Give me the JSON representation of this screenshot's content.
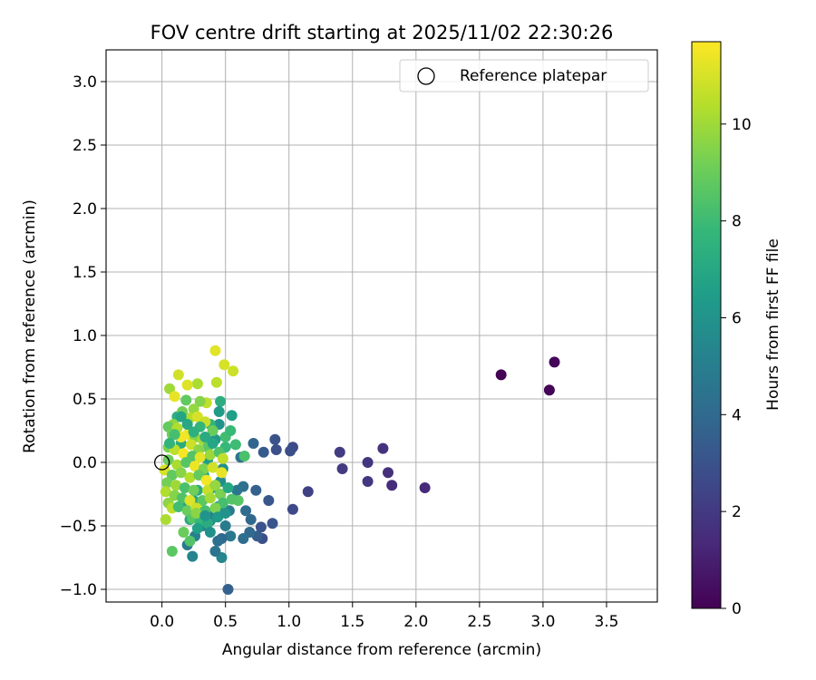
{
  "chart_data": {
    "type": "scatter",
    "title": "FOV centre drift starting at 2025/11/02 22:30:26",
    "xlabel": "Angular distance from reference (arcmin)",
    "ylabel": "Rotation from reference (arcmin)",
    "xlim": [
      -0.44,
      3.9
    ],
    "ylim": [
      -1.1,
      3.25
    ],
    "xticks": [
      0.0,
      0.5,
      1.0,
      1.5,
      2.0,
      2.5,
      3.0,
      3.5
    ],
    "yticks": [
      -1.0,
      -0.5,
      0.0,
      0.5,
      1.0,
      1.5,
      2.0,
      2.5,
      3.0
    ],
    "grid": true,
    "legend": {
      "position": "top-right",
      "entries": [
        {
          "label": "Reference platepar",
          "marker": "open-circle",
          "x": 0.0,
          "y": 0.0
        }
      ]
    },
    "colorbar": {
      "label": "Hours from first FF file",
      "colormap": "viridis",
      "range": [
        0,
        11.7
      ],
      "ticks": [
        0,
        2,
        4,
        6,
        8,
        10
      ],
      "colormap_stops": [
        "#440154",
        "#482878",
        "#3e4989",
        "#31688e",
        "#26828e",
        "#1f9e89",
        "#35b779",
        "#6ece58",
        "#b5de2b",
        "#fde725"
      ]
    },
    "reference_point": {
      "x": 0.0,
      "y": 0.0
    },
    "points": [
      {
        "x": 2.67,
        "y": 0.69,
        "t": 0.05
      },
      {
        "x": 3.05,
        "y": 0.57,
        "t": 0.1
      },
      {
        "x": 3.09,
        "y": 0.79,
        "t": 0.15
      },
      {
        "x": 2.07,
        "y": -0.2,
        "t": 1.4
      },
      {
        "x": 1.81,
        "y": -0.18,
        "t": 1.5
      },
      {
        "x": 1.78,
        "y": -0.08,
        "t": 1.6
      },
      {
        "x": 1.74,
        "y": 0.11,
        "t": 1.7
      },
      {
        "x": 1.62,
        "y": 0.0,
        "t": 1.8
      },
      {
        "x": 1.62,
        "y": -0.15,
        "t": 1.9
      },
      {
        "x": 1.42,
        "y": -0.05,
        "t": 2.0
      },
      {
        "x": 1.4,
        "y": 0.08,
        "t": 2.1
      },
      {
        "x": 1.15,
        "y": -0.23,
        "t": 2.3
      },
      {
        "x": 1.03,
        "y": -0.37,
        "t": 2.6
      },
      {
        "x": 1.03,
        "y": 0.12,
        "t": 2.7
      },
      {
        "x": 1.01,
        "y": 0.09,
        "t": 2.8
      },
      {
        "x": 0.9,
        "y": 0.1,
        "t": 2.9
      },
      {
        "x": 0.89,
        "y": 0.18,
        "t": 3.0
      },
      {
        "x": 0.87,
        "y": -0.48,
        "t": 3.1
      },
      {
        "x": 0.84,
        "y": -0.3,
        "t": 3.2
      },
      {
        "x": 0.8,
        "y": 0.08,
        "t": 3.3
      },
      {
        "x": 0.79,
        "y": -0.6,
        "t": 2.8
      },
      {
        "x": 0.78,
        "y": -0.51,
        "t": 3.0
      },
      {
        "x": 0.75,
        "y": -0.58,
        "t": 3.5
      },
      {
        "x": 0.74,
        "y": -0.22,
        "t": 3.6
      },
      {
        "x": 0.72,
        "y": 0.15,
        "t": 3.8
      },
      {
        "x": 0.7,
        "y": -0.45,
        "t": 3.9
      },
      {
        "x": 0.69,
        "y": -0.55,
        "t": 4.0
      },
      {
        "x": 0.66,
        "y": -0.38,
        "t": 4.1
      },
      {
        "x": 0.64,
        "y": -0.6,
        "t": 4.2
      },
      {
        "x": 0.64,
        "y": -0.19,
        "t": 4.3
      },
      {
        "x": 0.62,
        "y": 0.04,
        "t": 4.5
      },
      {
        "x": 0.59,
        "y": -0.22,
        "t": 4.6
      },
      {
        "x": 0.54,
        "y": -0.58,
        "t": 4.7
      },
      {
        "x": 0.53,
        "y": -0.38,
        "t": 4.8
      },
      {
        "x": 0.52,
        "y": -1.0,
        "t": 3.6
      },
      {
        "x": 0.5,
        "y": -0.5,
        "t": 4.9
      },
      {
        "x": 0.47,
        "y": -0.6,
        "t": 3.9
      },
      {
        "x": 0.47,
        "y": -0.75,
        "t": 5.4
      },
      {
        "x": 0.44,
        "y": -0.62,
        "t": 4.2
      },
      {
        "x": 0.42,
        "y": -0.7,
        "t": 4.5
      },
      {
        "x": 0.41,
        "y": -0.41,
        "t": 5.0
      },
      {
        "x": 0.24,
        "y": -0.74,
        "t": 5.3
      },
      {
        "x": 0.2,
        "y": -0.65,
        "t": 4.7
      },
      {
        "x": 0.44,
        "y": -0.35,
        "t": 5.6
      },
      {
        "x": 0.38,
        "y": -0.46,
        "t": 5.5
      },
      {
        "x": 0.32,
        "y": -0.5,
        "t": 5.2
      },
      {
        "x": 0.3,
        "y": -0.4,
        "t": 5.8
      },
      {
        "x": 0.26,
        "y": -0.58,
        "t": 5.1
      },
      {
        "x": 0.46,
        "y": -0.15,
        "t": 5.7
      },
      {
        "x": 0.48,
        "y": -0.05,
        "t": 5.9
      },
      {
        "x": 0.42,
        "y": 0.18,
        "t": 6.2
      },
      {
        "x": 0.45,
        "y": 0.3,
        "t": 6.0
      },
      {
        "x": 0.55,
        "y": 0.37,
        "t": 6.6
      },
      {
        "x": 0.46,
        "y": 0.48,
        "t": 7.3
      },
      {
        "x": 0.36,
        "y": 0.02,
        "t": 6.5
      },
      {
        "x": 0.33,
        "y": -0.1,
        "t": 6.8
      },
      {
        "x": 0.28,
        "y": -0.22,
        "t": 7.0
      },
      {
        "x": 0.25,
        "y": -0.3,
        "t": 6.9
      },
      {
        "x": 0.22,
        "y": -0.45,
        "t": 7.1
      },
      {
        "x": 0.18,
        "y": -0.32,
        "t": 6.7
      },
      {
        "x": 0.15,
        "y": 0.15,
        "t": 7.2
      },
      {
        "x": 0.12,
        "y": 0.36,
        "t": 7.4
      },
      {
        "x": 0.38,
        "y": 0.3,
        "t": 7.6
      },
      {
        "x": 0.4,
        "y": -0.2,
        "t": 7.5
      },
      {
        "x": 0.5,
        "y": 0.12,
        "t": 7.8
      },
      {
        "x": 0.58,
        "y": 0.14,
        "t": 8.0
      },
      {
        "x": 0.65,
        "y": 0.05,
        "t": 8.3
      },
      {
        "x": 0.6,
        "y": -0.3,
        "t": 8.6
      },
      {
        "x": 0.56,
        "y": 0.72,
        "t": 10.8
      },
      {
        "x": 0.49,
        "y": 0.77,
        "t": 11.0
      },
      {
        "x": 0.42,
        "y": 0.88,
        "t": 11.2
      },
      {
        "x": 0.43,
        "y": 0.63,
        "t": 10.5
      },
      {
        "x": 0.13,
        "y": 0.69,
        "t": 10.9
      },
      {
        "x": 0.28,
        "y": 0.62,
        "t": 10.2
      },
      {
        "x": 0.2,
        "y": 0.61,
        "t": 11.1
      },
      {
        "x": 0.06,
        "y": 0.58,
        "t": 10.0
      },
      {
        "x": 0.1,
        "y": 0.52,
        "t": 11.3
      },
      {
        "x": 0.35,
        "y": 0.47,
        "t": 10.6
      },
      {
        "x": 0.3,
        "y": 0.48,
        "t": 9.5
      },
      {
        "x": 0.19,
        "y": 0.49,
        "t": 8.8
      },
      {
        "x": 0.25,
        "y": 0.42,
        "t": 9.8
      },
      {
        "x": 0.22,
        "y": 0.35,
        "t": 10.4
      },
      {
        "x": 0.16,
        "y": 0.4,
        "t": 9.2
      },
      {
        "x": 0.28,
        "y": 0.36,
        "t": 11.0
      },
      {
        "x": 0.34,
        "y": 0.32,
        "t": 10.7
      },
      {
        "x": 0.4,
        "y": 0.25,
        "t": 9.0
      },
      {
        "x": 0.09,
        "y": 0.3,
        "t": 9.7
      },
      {
        "x": 0.05,
        "y": 0.28,
        "t": 8.9
      },
      {
        "x": 0.12,
        "y": 0.27,
        "t": 10.3
      },
      {
        "x": 0.2,
        "y": 0.22,
        "t": 11.4
      },
      {
        "x": 0.26,
        "y": 0.2,
        "t": 9.4
      },
      {
        "x": 0.32,
        "y": 0.18,
        "t": 10.1
      },
      {
        "x": 0.36,
        "y": 0.12,
        "t": 8.7
      },
      {
        "x": 0.08,
        "y": 0.22,
        "t": 9.1
      },
      {
        "x": 0.15,
        "y": 0.2,
        "t": 11.5
      },
      {
        "x": 0.23,
        "y": 0.14,
        "t": 10.8
      },
      {
        "x": 0.29,
        "y": 0.1,
        "t": 9.6
      },
      {
        "x": 0.05,
        "y": 0.12,
        "t": 9.3
      },
      {
        "x": 0.1,
        "y": 0.1,
        "t": 10.5
      },
      {
        "x": 0.17,
        "y": 0.07,
        "t": 11.6
      },
      {
        "x": 0.24,
        "y": 0.05,
        "t": 8.5
      },
      {
        "x": 0.3,
        "y": 0.04,
        "t": 11.2
      },
      {
        "x": 0.38,
        "y": 0.06,
        "t": 9.9
      },
      {
        "x": 0.45,
        "y": 0.08,
        "t": 8.4
      },
      {
        "x": 0.48,
        "y": 0.03,
        "t": 10.6
      },
      {
        "x": 0.05,
        "y": 0.02,
        "t": 9.0
      },
      {
        "x": 0.12,
        "y": -0.02,
        "t": 10.2
      },
      {
        "x": 0.19,
        "y": 0.0,
        "t": 8.6
      },
      {
        "x": 0.26,
        "y": -0.03,
        "t": 11.4
      },
      {
        "x": 0.33,
        "y": -0.05,
        "t": 9.4
      },
      {
        "x": 0.4,
        "y": -0.04,
        "t": 10.9
      },
      {
        "x": 0.47,
        "y": -0.08,
        "t": 11.3
      },
      {
        "x": 0.02,
        "y": -0.06,
        "t": 11.0
      },
      {
        "x": 0.08,
        "y": -0.1,
        "t": 8.8
      },
      {
        "x": 0.15,
        "y": -0.08,
        "t": 9.6
      },
      {
        "x": 0.22,
        "y": -0.12,
        "t": 10.4
      },
      {
        "x": 0.29,
        "y": -0.1,
        "t": 8.9
      },
      {
        "x": 0.35,
        "y": -0.14,
        "t": 11.5
      },
      {
        "x": 0.04,
        "y": -0.16,
        "t": 9.2
      },
      {
        "x": 0.11,
        "y": -0.18,
        "t": 10.0
      },
      {
        "x": 0.18,
        "y": -0.2,
        "t": 8.3
      },
      {
        "x": 0.25,
        "y": -0.22,
        "t": 9.1
      },
      {
        "x": 0.36,
        "y": -0.22,
        "t": 10.7
      },
      {
        "x": 0.42,
        "y": -0.18,
        "t": 9.8
      },
      {
        "x": 0.03,
        "y": -0.23,
        "t": 10.3
      },
      {
        "x": 0.1,
        "y": -0.26,
        "t": 9.5
      },
      {
        "x": 0.16,
        "y": -0.28,
        "t": 8.4
      },
      {
        "x": 0.22,
        "y": -0.3,
        "t": 11.1
      },
      {
        "x": 0.32,
        "y": -0.3,
        "t": 8.7
      },
      {
        "x": 0.38,
        "y": -0.28,
        "t": 10.1
      },
      {
        "x": 0.46,
        "y": -0.25,
        "t": 9.3
      },
      {
        "x": 0.48,
        "y": -0.32,
        "t": 8.2
      },
      {
        "x": 0.55,
        "y": -0.29,
        "t": 8.5
      },
      {
        "x": 0.05,
        "y": -0.32,
        "t": 9.7
      },
      {
        "x": 0.08,
        "y": -0.36,
        "t": 10.5
      },
      {
        "x": 0.13,
        "y": -0.35,
        "t": 8.1
      },
      {
        "x": 0.2,
        "y": -0.38,
        "t": 9.0
      },
      {
        "x": 0.27,
        "y": -0.36,
        "t": 10.8
      },
      {
        "x": 0.34,
        "y": -0.38,
        "t": 8.2
      },
      {
        "x": 0.42,
        "y": -0.36,
        "t": 9.4
      },
      {
        "x": 0.03,
        "y": -0.45,
        "t": 10.2
      },
      {
        "x": 0.24,
        "y": -0.44,
        "t": 8.6
      },
      {
        "x": 0.3,
        "y": -0.46,
        "t": 7.8
      },
      {
        "x": 0.36,
        "y": -0.48,
        "t": 7.2
      },
      {
        "x": 0.17,
        "y": -0.55,
        "t": 9.0
      },
      {
        "x": 0.22,
        "y": -0.62,
        "t": 8.5
      },
      {
        "x": 0.08,
        "y": -0.7,
        "t": 8.7
      },
      {
        "x": 0.27,
        "y": -0.4,
        "t": 9.6
      },
      {
        "x": 0.44,
        "y": -0.43,
        "t": 6.3
      },
      {
        "x": 0.5,
        "y": -0.4,
        "t": 6.0
      },
      {
        "x": 0.52,
        "y": -0.2,
        "t": 7.0
      },
      {
        "x": 0.5,
        "y": 0.2,
        "t": 8.1
      },
      {
        "x": 0.54,
        "y": 0.25,
        "t": 7.9
      },
      {
        "x": 0.45,
        "y": 0.4,
        "t": 6.4
      },
      {
        "x": 0.3,
        "y": 0.28,
        "t": 7.7
      },
      {
        "x": 0.2,
        "y": 0.3,
        "t": 7.0
      },
      {
        "x": 0.15,
        "y": 0.36,
        "t": 6.8
      },
      {
        "x": 0.25,
        "y": 0.24,
        "t": 7.4
      },
      {
        "x": 0.34,
        "y": 0.2,
        "t": 7.1
      },
      {
        "x": 0.4,
        "y": 0.15,
        "t": 6.9
      },
      {
        "x": 0.1,
        "y": 0.22,
        "t": 8.2
      },
      {
        "x": 0.06,
        "y": 0.15,
        "t": 7.6
      },
      {
        "x": 0.34,
        "y": -0.42,
        "t": 6.1
      },
      {
        "x": 0.38,
        "y": -0.55,
        "t": 5.9
      },
      {
        "x": 0.28,
        "y": -0.52,
        "t": 6.6
      }
    ]
  }
}
